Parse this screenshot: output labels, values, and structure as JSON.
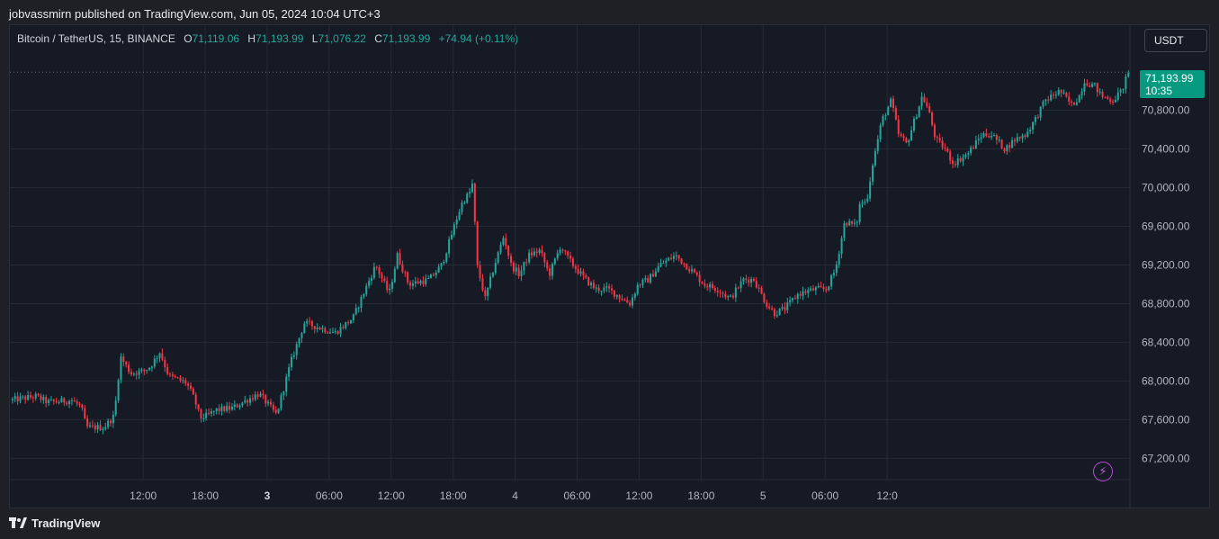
{
  "caption": "jobvassmirn published on TradingView.com, Jun 05, 2024 10:04 UTC+3",
  "legend": {
    "symbol": "Bitcoin / TetherUS, 15, BINANCE",
    "open_label": "O",
    "open": "71,119.06",
    "high_label": "H",
    "high": "71,193.99",
    "low_label": "L",
    "low": "71,076.22",
    "close_label": "C",
    "close": "71,193.99",
    "change": "+74.94 (+0.11%)"
  },
  "currency_button": "USDT",
  "last_price": {
    "price": "71,193.99",
    "countdown": "10:35"
  },
  "footer": {
    "brand": "TradingView"
  },
  "colors": {
    "up": "#26a69a",
    "down": "#f23645",
    "background": "#161a25",
    "grid": "#262a35",
    "price_tag": "#089981",
    "alert_icon": "#b84ad6"
  },
  "icons": {
    "alert": "lightning-bolt-icon",
    "logo": "tradingview-logo-icon"
  },
  "chart_data": {
    "type": "candlestick",
    "title": "Bitcoin / TetherUS, 15, BINANCE",
    "interval": "15",
    "y_ticks": [
      67200,
      67600,
      68000,
      68400,
      68800,
      69200,
      69600,
      70000,
      70400,
      70800
    ],
    "y_tick_labels": [
      "67,200.00",
      "67,600.00",
      "68,000.00",
      "68,400.00",
      "68,800.00",
      "69,200.00",
      "69,600.00",
      "70,000.00",
      "70,400.00",
      "70,800.00"
    ],
    "ylim": [
      66980,
      71680
    ],
    "x_ticks": [
      "12:00",
      "18:00",
      "3",
      "06:00",
      "12:00",
      "18:00",
      "4",
      "06:00",
      "12:00",
      "18:00",
      "5",
      "06:00",
      "12:0"
    ],
    "x_ticks_bold": [
      false,
      false,
      true,
      false,
      false,
      false,
      false,
      false,
      false,
      false,
      false,
      false,
      false
    ],
    "x_range_hours": [
      -12.9,
      95.5
    ],
    "last_price_line": 71193.99,
    "grid": true,
    "price_waypoints": [
      [
        -12.9,
        67800
      ],
      [
        -10.4,
        67840
      ],
      [
        -9.2,
        67780
      ],
      [
        -6.9,
        67800
      ],
      [
        -6.0,
        67730
      ],
      [
        -5.5,
        67520
      ],
      [
        -3.8,
        67520
      ],
      [
        -2.8,
        67640
      ],
      [
        -2.2,
        68250
      ],
      [
        -1.2,
        68080
      ],
      [
        0.0,
        68100
      ],
      [
        0.7,
        68150
      ],
      [
        1.6,
        68300
      ],
      [
        2.5,
        68050
      ],
      [
        4.2,
        67980
      ],
      [
        5.0,
        67800
      ],
      [
        5.5,
        67620
      ],
      [
        6.2,
        67640
      ],
      [
        7.1,
        67700
      ],
      [
        8.6,
        67720
      ],
      [
        11.2,
        67870
      ],
      [
        12.9,
        67650
      ],
      [
        14.3,
        68200
      ],
      [
        15.6,
        68600
      ],
      [
        18.6,
        68500
      ],
      [
        20.3,
        68650
      ],
      [
        22.5,
        69200
      ],
      [
        23.8,
        68900
      ],
      [
        24.6,
        69300
      ],
      [
        25.7,
        69000
      ],
      [
        27.7,
        69050
      ],
      [
        28.9,
        69200
      ],
      [
        30.4,
        69700
      ],
      [
        30.9,
        69850
      ],
      [
        31.6,
        69950
      ],
      [
        31.9,
        70050
      ],
      [
        32.3,
        69200
      ],
      [
        33.1,
        68850
      ],
      [
        34.0,
        69200
      ],
      [
        34.9,
        69500
      ],
      [
        35.6,
        69200
      ],
      [
        36.4,
        69100
      ],
      [
        37.3,
        69300
      ],
      [
        38.4,
        69350
      ],
      [
        39.3,
        69100
      ],
      [
        40.4,
        69400
      ],
      [
        40.9,
        69300
      ],
      [
        41.6,
        69200
      ],
      [
        42.8,
        69050
      ],
      [
        43.8,
        68950
      ],
      [
        45.0,
        68950
      ],
      [
        47.1,
        68800
      ],
      [
        47.9,
        69000
      ],
      [
        48.9,
        69050
      ],
      [
        50.0,
        69200
      ],
      [
        51.5,
        69300
      ],
      [
        53.0,
        69150
      ],
      [
        54.3,
        69000
      ],
      [
        55.6,
        68950
      ],
      [
        56.8,
        68850
      ],
      [
        58.1,
        69050
      ],
      [
        59.1,
        69050
      ],
      [
        60.3,
        68800
      ],
      [
        61.1,
        68700
      ],
      [
        62.1,
        68750
      ],
      [
        63.4,
        68900
      ],
      [
        65.0,
        68950
      ],
      [
        66.1,
        68950
      ],
      [
        67.0,
        69150
      ],
      [
        67.9,
        69650
      ],
      [
        69.0,
        69600
      ],
      [
        69.4,
        69850
      ],
      [
        70.0,
        69850
      ],
      [
        70.6,
        70250
      ],
      [
        71.5,
        70700
      ],
      [
        72.4,
        70900
      ],
      [
        73.1,
        70550
      ],
      [
        73.9,
        70450
      ],
      [
        74.5,
        70650
      ],
      [
        75.4,
        70950
      ],
      [
        76.0,
        70800
      ],
      [
        76.7,
        70500
      ],
      [
        77.6,
        70400
      ],
      [
        78.4,
        70250
      ],
      [
        79.8,
        70350
      ],
      [
        81.2,
        70550
      ],
      [
        82.1,
        70550
      ],
      [
        83.4,
        70400
      ],
      [
        84.4,
        70500
      ],
      [
        85.4,
        70550
      ],
      [
        86.3,
        70700
      ],
      [
        87.3,
        70900
      ],
      [
        88.7,
        71000
      ],
      [
        89.9,
        70850
      ],
      [
        90.6,
        70950
      ],
      [
        91.1,
        71100
      ],
      [
        92.1,
        71050
      ],
      [
        92.7,
        70950
      ],
      [
        93.8,
        70900
      ],
      [
        94.7,
        71000
      ],
      [
        95.1,
        71119.06
      ],
      [
        95.5,
        71193.99
      ]
    ]
  }
}
